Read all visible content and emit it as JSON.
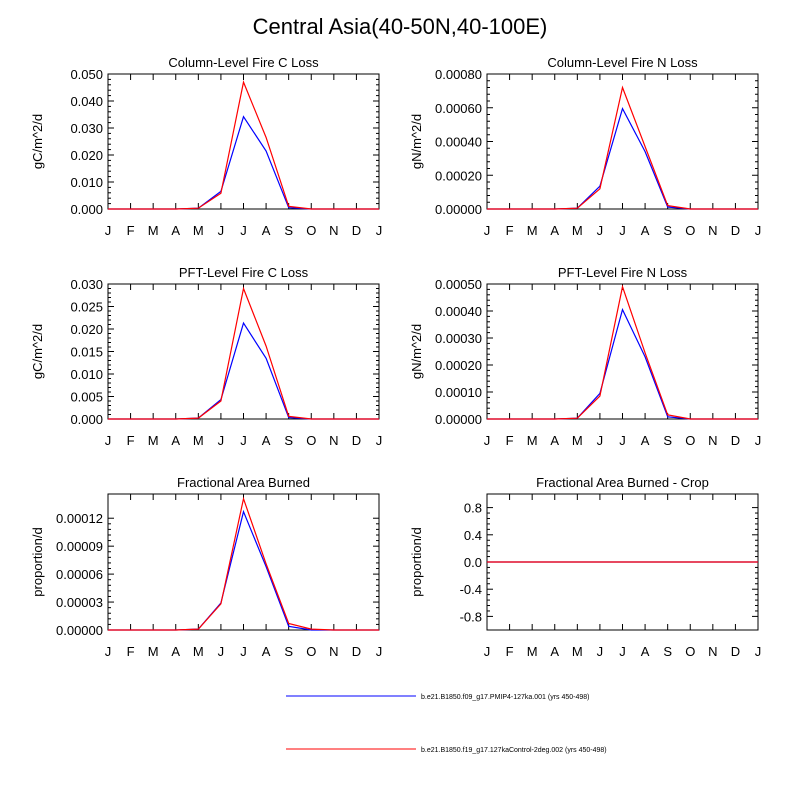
{
  "title": "Central Asia(40-50N,40-100E)",
  "months": [
    "J",
    "F",
    "M",
    "A",
    "M",
    "J",
    "J",
    "A",
    "S",
    "O",
    "N",
    "D",
    "J"
  ],
  "colors": {
    "series1": "#0000ff",
    "series2": "#ff0000",
    "axis": "#000000"
  },
  "chart_data": [
    {
      "type": "line",
      "title": "Column-Level Fire C Loss",
      "ylabel": "gC/m^2/d",
      "ylim": [
        0,
        0.05
      ],
      "yticks": [
        0,
        0.01,
        0.02,
        0.03,
        0.04,
        0.05
      ],
      "ytick_labels": [
        "0.000",
        "0.010",
        "0.020",
        "0.030",
        "0.040",
        "0.050"
      ],
      "series": [
        {
          "name": "b.e21.B1850.f09_g17.PMIP4-127ka.001 (yrs 450-498)",
          "values": [
            0,
            0,
            0,
            0,
            0.0003,
            0.0065,
            0.0342,
            0.0215,
            0.0005,
            0,
            0,
            0,
            0
          ]
        },
        {
          "name": "b.e21.B1850.f19_g17.127kaControl-2deg.002 (yrs 450-498)",
          "values": [
            0,
            0,
            0,
            0,
            0.0003,
            0.0058,
            0.047,
            0.0265,
            0.001,
            0,
            0,
            0,
            0
          ]
        }
      ]
    },
    {
      "type": "line",
      "title": "Column-Level Fire N Loss",
      "ylabel": "gN/m^2/d",
      "ylim": [
        0,
        0.0008
      ],
      "yticks": [
        0,
        0.0002,
        0.0004,
        0.0006,
        0.0008
      ],
      "ytick_labels": [
        "0.00000",
        "0.00020",
        "0.00040",
        "0.00060",
        "0.00080"
      ],
      "series": [
        {
          "name": "b.e21.B1850.f09_g17.PMIP4-127ka.001 (yrs 450-498)",
          "values": [
            0,
            0,
            0,
            0,
            5e-06,
            0.000135,
            0.000595,
            0.00034,
            1.2e-05,
            0,
            0,
            0,
            0
          ]
        },
        {
          "name": "b.e21.B1850.f19_g17.127kaControl-2deg.002 (yrs 450-498)",
          "values": [
            0,
            0,
            0,
            0,
            5e-06,
            0.00012,
            0.00072,
            0.00037,
            2e-05,
            0,
            0,
            0,
            0
          ]
        }
      ]
    },
    {
      "type": "line",
      "title": "PFT-Level Fire C Loss",
      "ylabel": "gC/m^2/d",
      "ylim": [
        0,
        0.03
      ],
      "yticks": [
        0,
        0.005,
        0.01,
        0.015,
        0.02,
        0.025,
        0.03
      ],
      "ytick_labels": [
        "0.000",
        "0.005",
        "0.010",
        "0.015",
        "0.020",
        "0.025",
        "0.030"
      ],
      "series": [
        {
          "name": "b.e21.B1850.f09_g17.PMIP4-127ka.001 (yrs 450-498)",
          "values": [
            0,
            0,
            0,
            0,
            0.0002,
            0.0043,
            0.0213,
            0.0135,
            0.0003,
            0,
            0,
            0,
            0
          ]
        },
        {
          "name": "b.e21.B1850.f19_g17.127kaControl-2deg.002 (yrs 450-498)",
          "values": [
            0,
            0,
            0,
            0,
            0.0002,
            0.004,
            0.029,
            0.0162,
            0.0006,
            0,
            0,
            0,
            0
          ]
        }
      ]
    },
    {
      "type": "line",
      "title": "PFT-Level Fire N Loss",
      "ylabel": "gN/m^2/d",
      "ylim": [
        0,
        0.0005
      ],
      "yticks": [
        0,
        0.0001,
        0.0002,
        0.0003,
        0.0004,
        0.0005
      ],
      "ytick_labels": [
        "0.00000",
        "0.00010",
        "0.00020",
        "0.00030",
        "0.00040",
        "0.00050"
      ],
      "series": [
        {
          "name": "b.e21.B1850.f09_g17.PMIP4-127ka.001 (yrs 450-498)",
          "values": [
            0,
            0,
            0,
            0,
            3e-06,
            9.5e-05,
            0.000405,
            0.00023,
            8e-06,
            0,
            0,
            0,
            0
          ]
        },
        {
          "name": "b.e21.B1850.f19_g17.127kaControl-2deg.002 (yrs 450-498)",
          "values": [
            0,
            0,
            0,
            0,
            3e-06,
            8.5e-05,
            0.00049,
            0.000245,
            1.5e-05,
            0,
            0,
            0,
            0
          ]
        }
      ]
    },
    {
      "type": "line",
      "title": "Fractional Area Burned",
      "ylabel": "proportion/d",
      "ylim": [
        0,
        0.000146
      ],
      "yticks": [
        0,
        3e-05,
        6e-05,
        9e-05,
        0.00012
      ],
      "ytick_labels": [
        "0.00000",
        "0.00003",
        "0.00006",
        "0.00009",
        "0.00012"
      ],
      "series": [
        {
          "name": "b.e21.B1850.f09_g17.PMIP4-127ka.001 (yrs 450-498)",
          "values": [
            0,
            0,
            0,
            0,
            1e-06,
            2.9e-05,
            0.000127,
            6.8e-05,
            4e-06,
            0,
            0,
            0,
            0
          ]
        },
        {
          "name": "b.e21.B1850.f19_g17.127kaControl-2deg.002 (yrs 450-498)",
          "values": [
            0,
            0,
            0,
            0,
            1e-06,
            2.8e-05,
            0.000141,
            7.1e-05,
            7e-06,
            1e-06,
            0,
            0,
            0
          ]
        }
      ]
    },
    {
      "type": "line",
      "title": "Fractional Area Burned - Crop",
      "ylabel": "proportion/d",
      "ylim": [
        -1.0,
        1.0
      ],
      "yticks": [
        -0.8,
        -0.4,
        0.0,
        0.4,
        0.8
      ],
      "ytick_labels": [
        "-0.8",
        "-0.4",
        "0.0",
        "0.4",
        "0.8"
      ],
      "series": [
        {
          "name": "b.e21.B1850.f09_g17.PMIP4-127ka.001 (yrs 450-498)",
          "values": [
            0,
            0,
            0,
            0,
            0,
            0,
            0,
            0,
            0,
            0,
            0,
            0,
            0
          ]
        },
        {
          "name": "b.e21.B1850.f19_g17.127kaControl-2deg.002 (yrs 450-498)",
          "values": [
            0,
            0,
            0,
            0,
            0,
            0,
            0,
            0,
            0,
            0,
            0,
            0,
            0
          ]
        }
      ]
    }
  ],
  "legend": [
    {
      "label": "b.e21.B1850.f09_g17.PMIP4-127ka.001 (yrs 450-498)",
      "color": "#0000ff"
    },
    {
      "label": "b.e21.B1850.f19_g17.127kaControl-2deg.002 (yrs 450-498)",
      "color": "#ff0000"
    }
  ]
}
